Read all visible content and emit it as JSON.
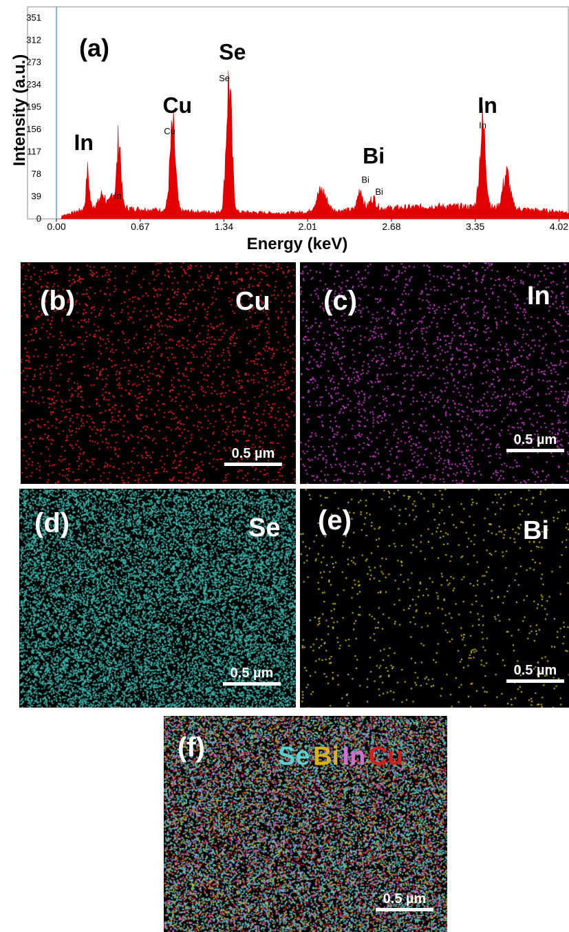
{
  "chart_data": {
    "type": "area",
    "panel_label": "(a)",
    "xlabel": "Energy (keV)",
    "ylabel": "Intensity (a.u.)",
    "xlim": [
      0.0,
      4.1
    ],
    "ylim": [
      0,
      370
    ],
    "x_ticks": [
      "0.00",
      "0.67",
      "1.34",
      "2.01",
      "2.68",
      "3.35",
      "4.02"
    ],
    "y_ticks": [
      "0",
      "39",
      "78",
      "117",
      "156",
      "195",
      "234",
      "273",
      "312",
      "351"
    ],
    "grid": false,
    "series_color": "#e00000",
    "background": [
      [
        0.0,
        4
      ],
      [
        0.05,
        6
      ],
      [
        0.15,
        12
      ],
      [
        0.3,
        24
      ],
      [
        0.35,
        26
      ],
      [
        0.5,
        22
      ],
      [
        0.6,
        18
      ],
      [
        0.8,
        16
      ],
      [
        1.0,
        14
      ],
      [
        1.2,
        12
      ],
      [
        1.5,
        12
      ],
      [
        1.8,
        10
      ],
      [
        2.0,
        12
      ],
      [
        2.2,
        14
      ],
      [
        2.5,
        18
      ],
      [
        2.8,
        20
      ],
      [
        3.0,
        22
      ],
      [
        3.2,
        22
      ],
      [
        3.5,
        20
      ],
      [
        3.8,
        16
      ],
      [
        4.1,
        12
      ]
    ],
    "peaks": [
      {
        "x": 0.25,
        "height": 62,
        "width": 0.012
      },
      {
        "x": 0.37,
        "height": 18,
        "width": 0.02
      },
      {
        "x": 0.45,
        "height": 22,
        "width": 0.015
      },
      {
        "x": 0.5,
        "height": 118,
        "width": 0.016
      },
      {
        "x": 0.93,
        "height": 140,
        "width": 0.022
      },
      {
        "x": 1.38,
        "height": 225,
        "width": 0.022
      },
      {
        "x": 2.12,
        "height": 36,
        "width": 0.04
      },
      {
        "x": 2.43,
        "height": 35,
        "width": 0.02
      },
      {
        "x": 2.53,
        "height": 18,
        "width": 0.025
      },
      {
        "x": 3.41,
        "height": 140,
        "width": 0.024
      },
      {
        "x": 3.6,
        "height": 60,
        "width": 0.028
      }
    ],
    "annotations": [
      {
        "text": "In",
        "x": 0.14,
        "y": 120,
        "size": "large"
      },
      {
        "text": "In",
        "x": 0.46,
        "y": 35,
        "size": "small"
      },
      {
        "text": "Cu",
        "x": 0.85,
        "y": 185,
        "size": "large"
      },
      {
        "text": "Cu",
        "x": 0.86,
        "y": 148,
        "size": "small"
      },
      {
        "text": "Se",
        "x": 1.3,
        "y": 278,
        "size": "large"
      },
      {
        "text": "Se",
        "x": 1.3,
        "y": 240,
        "size": "small"
      },
      {
        "text": "Bi",
        "x": 2.45,
        "y": 97,
        "size": "large"
      },
      {
        "text": "Bi",
        "x": 2.44,
        "y": 63,
        "size": "small"
      },
      {
        "text": "Bi",
        "x": 2.55,
        "y": 42,
        "size": "small"
      },
      {
        "text": "In",
        "x": 3.37,
        "y": 185,
        "size": "large"
      },
      {
        "text": "In",
        "x": 3.38,
        "y": 158,
        "size": "small"
      }
    ]
  },
  "maps": [
    {
      "id": "b",
      "letter": "(b)",
      "element": "Cu",
      "color": "#ff2020",
      "density": 0.03,
      "scalebar": "0.5 µm"
    },
    {
      "id": "c",
      "letter": "(c)",
      "element": "In",
      "color": "#e040e0",
      "density": 0.03,
      "scalebar": "0.5 µm"
    },
    {
      "id": "d",
      "letter": "(d)",
      "element": "Se",
      "color": "#40b8b0",
      "density": 0.22,
      "scalebar": "0.5 µm"
    },
    {
      "id": "e",
      "letter": "(e)",
      "element": "Bi",
      "color": "#e0d020",
      "density": 0.012,
      "scalebar": "0.5 µm"
    },
    {
      "id": "f",
      "letter": "(f)",
      "element": "",
      "color": "",
      "density": 0.3,
      "scalebar": "0.5 µm"
    }
  ],
  "merged_labels": [
    {
      "text": "Se",
      "color": "#5cd0d0"
    },
    {
      "text": "Bi",
      "color": "#d8b020"
    },
    {
      "text": "In",
      "color": "#d070d0"
    },
    {
      "text": "Cu",
      "color": "#d02020"
    }
  ]
}
